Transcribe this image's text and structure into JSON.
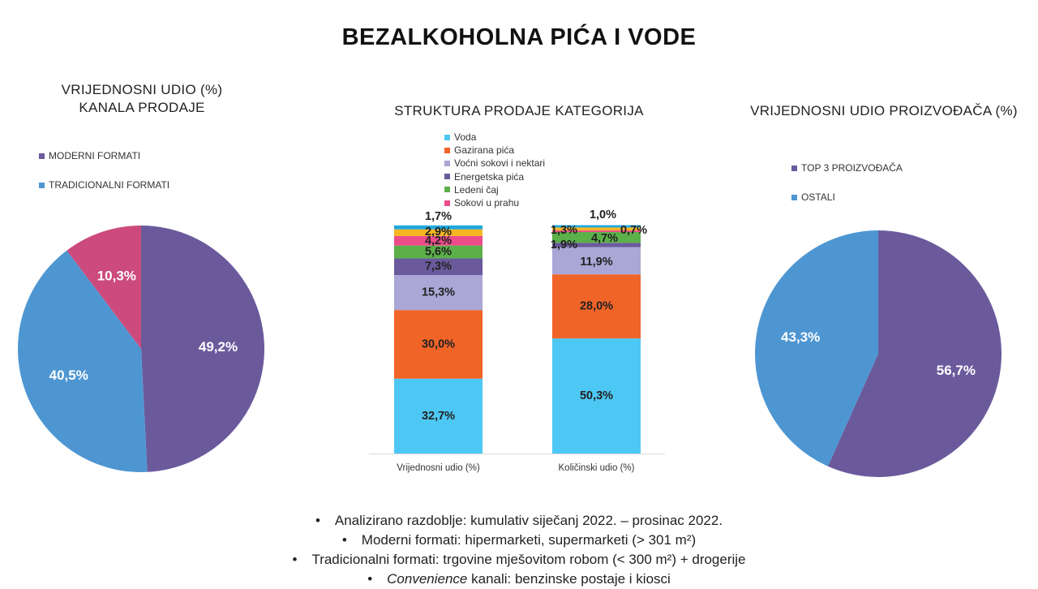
{
  "title": "BEZALKOHOLNA PIĆA I VODE",
  "chart_data": [
    {
      "type": "pie",
      "title_lines": [
        "VRIJEDNOSNI UDIO (%)",
        "KANALA PRODAJE"
      ],
      "legend": [
        "MODERNI FORMATI",
        "TRADICIONALNI FORMATI"
      ],
      "legend_colors": [
        "#6a5a9c",
        "#4e96d2"
      ],
      "slices": [
        {
          "label": "49,2%",
          "value": 49.2,
          "color": "#6a5a9c"
        },
        {
          "label": "40,5%",
          "value": 40.5,
          "color": "#4e96d2"
        },
        {
          "label": "10,3%",
          "value": 10.3,
          "color": "#cc4b7c"
        }
      ]
    },
    {
      "type": "bar",
      "stacked": true,
      "title": "STRUKTURA PRODAJE KATEGORIJA",
      "categories": [
        "Vrijednosni udio (%)",
        "Količinski udio (%)"
      ],
      "ylim": [
        0,
        100
      ],
      "series": [
        {
          "name": "Voda",
          "color": "#4dc8f4",
          "values": [
            32.7,
            50.3
          ],
          "labels": [
            "32,7%",
            "50,3%"
          ]
        },
        {
          "name": "Gazirana pića",
          "color": "#f06428",
          "values": [
            30.0,
            28.0
          ],
          "labels": [
            "30,0%",
            "28,0%"
          ]
        },
        {
          "name": "Voćni sokovi i nektari",
          "color": "#aaa6d6",
          "values": [
            15.3,
            11.9
          ],
          "labels": [
            "15,3%",
            "11,9%"
          ]
        },
        {
          "name": "Energetska pića",
          "color": "#6a5a9c",
          "values": [
            7.3,
            1.9
          ],
          "labels": [
            "7,3%",
            "1,9%"
          ]
        },
        {
          "name": "Ledeni čaj",
          "color": "#5bb04a",
          "values": [
            5.6,
            4.7
          ],
          "labels": [
            "5,6%",
            "4,7%"
          ]
        },
        {
          "name": "Sokovi u prahu",
          "color": "#ee4b8b",
          "values": [
            4.2,
            0.7
          ],
          "labels": [
            "4,2%",
            "0,7%"
          ]
        },
        {
          "name": "",
          "color": "#f5b622",
          "values": [
            2.9,
            1.3
          ],
          "labels": [
            "2,9%",
            "1,3%"
          ]
        },
        {
          "name": "",
          "color": "#1fa8e0",
          "values": [
            1.7,
            1.0
          ],
          "labels": [
            "1,7%",
            "1,0%"
          ]
        }
      ]
    },
    {
      "type": "pie",
      "title": "VRIJEDNOSNI UDIO PROIZVOĐAČA (%)",
      "legend": [
        "TOP 3 PROIZVOĐAČA",
        "OSTALI"
      ],
      "legend_colors": [
        "#6a5a9c",
        "#4e96d2"
      ],
      "slices": [
        {
          "label": "56,7%",
          "value": 56.7,
          "color": "#6a5a9c"
        },
        {
          "label": "43,3%",
          "value": 43.3,
          "color": "#4e96d2"
        }
      ]
    }
  ],
  "notes": [
    "Analizirano razdoblje: kumulativ siječanj 2022. – prosinac 2022.",
    "Moderni formati: hipermarketi, supermarketi (> 301 m²)",
    "Tradicionalni formati: trgovine mješovitom robom (< 300 m²) + drogerije"
  ],
  "note_last": {
    "em": "Convenience",
    "rest": " kanali: benzinske postaje i kiosci"
  }
}
